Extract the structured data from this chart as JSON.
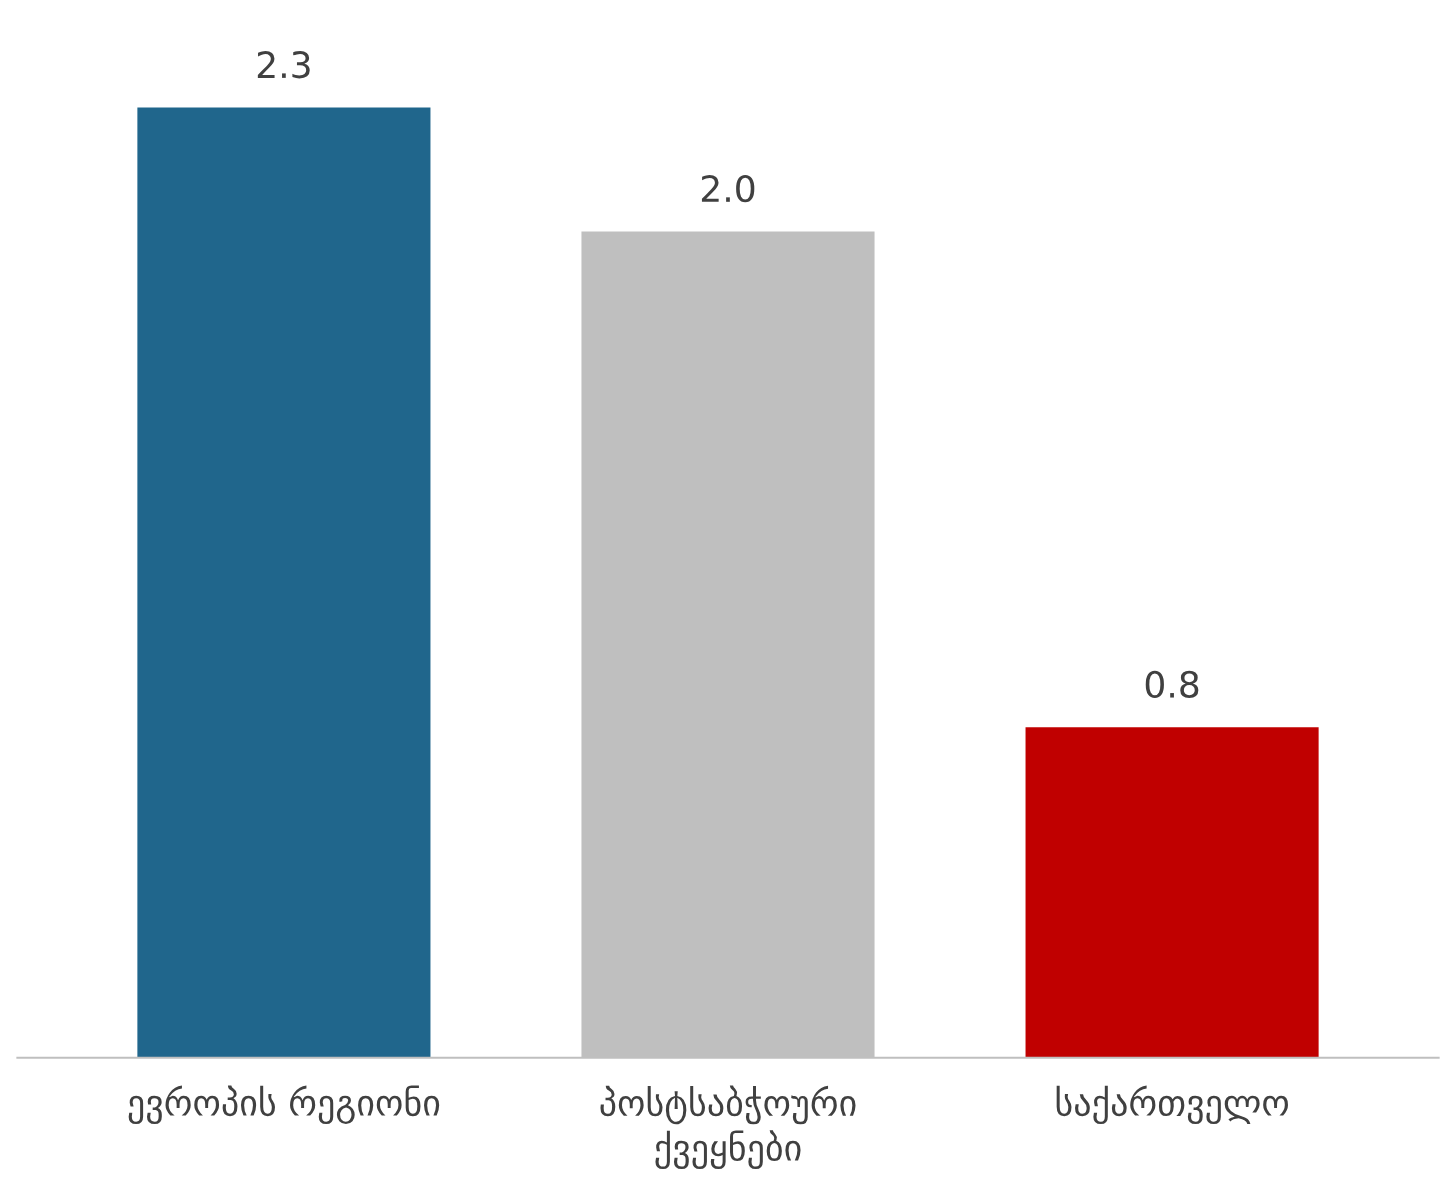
{
  "chart_data": {
    "type": "bar",
    "categories": [
      "ევროპის რეგიონი",
      "პოსტსაბჭოური\nქვეყნები",
      "საქართველო"
    ],
    "values": [
      2.3,
      2.0,
      0.8
    ],
    "colors": [
      "#20668c",
      "#bfbfbf",
      "#c00000"
    ],
    "value_labels": [
      "2.3",
      "2.0",
      "0.8"
    ],
    "grid": false,
    "legend": false,
    "tick_labels": "x"
  }
}
